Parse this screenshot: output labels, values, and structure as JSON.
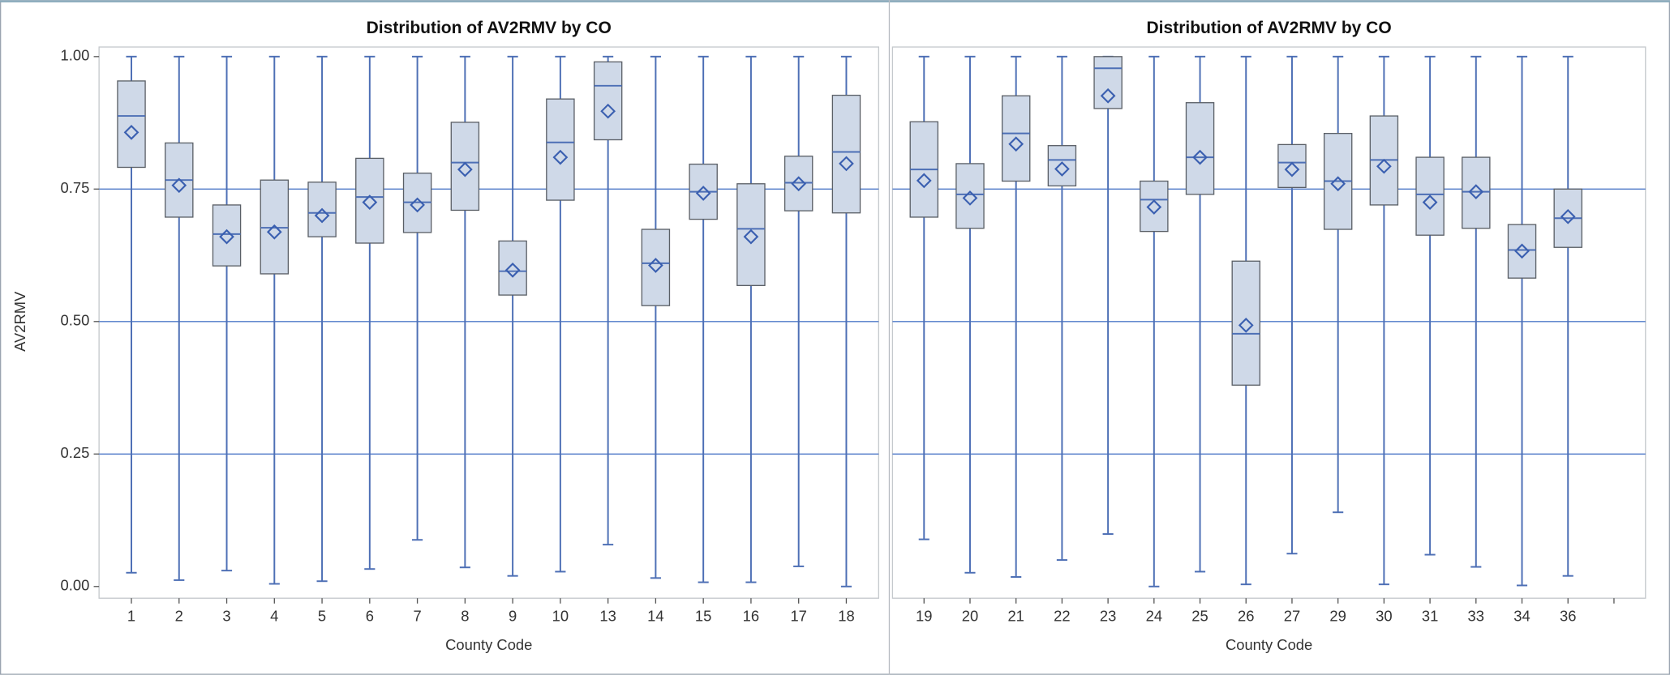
{
  "chart_data": [
    {
      "type": "box",
      "title": "Distribution of AV2RMV by CO",
      "xlabel": "County Code",
      "ylabel": "AV2RMV",
      "categories": [
        "1",
        "2",
        "3",
        "4",
        "5",
        "6",
        "7",
        "8",
        "9",
        "10",
        "13",
        "14",
        "15",
        "16",
        "17",
        "18"
      ],
      "min": [
        0.026,
        0.012,
        0.03,
        0.005,
        0.01,
        0.033,
        0.088,
        0.036,
        0.02,
        0.028,
        0.079,
        0.016,
        0.008,
        0.008,
        0.038,
        0.0
      ],
      "q1": [
        0.791,
        0.697,
        0.605,
        0.59,
        0.66,
        0.648,
        0.668,
        0.71,
        0.55,
        0.729,
        0.843,
        0.53,
        0.693,
        0.568,
        0.709,
        0.705
      ],
      "median": [
        0.888,
        0.767,
        0.665,
        0.677,
        0.705,
        0.735,
        0.725,
        0.8,
        0.595,
        0.838,
        0.945,
        0.61,
        0.745,
        0.675,
        0.762,
        0.82
      ],
      "q3": [
        0.954,
        0.837,
        0.72,
        0.767,
        0.763,
        0.808,
        0.78,
        0.876,
        0.652,
        0.92,
        0.99,
        0.674,
        0.797,
        0.76,
        0.812,
        0.927
      ],
      "max": [
        1,
        1,
        1,
        1,
        1,
        1,
        1,
        1,
        1,
        1,
        1,
        1,
        1,
        1,
        1,
        1
      ],
      "mean": [
        0.857,
        0.757,
        0.66,
        0.669,
        0.7,
        0.725,
        0.72,
        0.787,
        0.597,
        0.81,
        0.897,
        0.606,
        0.742,
        0.66,
        0.76,
        0.798
      ],
      "ylim": [
        0,
        1
      ],
      "yticks": [
        {
          "value": 0,
          "label": "0.00"
        },
        {
          "value": 0.25,
          "label": "0.25"
        },
        {
          "value": 0.5,
          "label": "0.50"
        },
        {
          "value": 0.75,
          "label": "0.75"
        },
        {
          "value": 1,
          "label": "1.00"
        }
      ],
      "reference_lines": [
        0.25,
        0.5,
        0.75
      ],
      "box_color": "#cfd9e8",
      "whisker_color": "#4d6fb5",
      "mean_color": "#3a5fb0"
    },
    {
      "type": "box",
      "title": "Distribution of AV2RMV by CO",
      "xlabel": "County Code",
      "categories": [
        "19",
        "20",
        "21",
        "22",
        "23",
        "24",
        "25",
        "26",
        "27",
        "29",
        "30",
        "31",
        "33",
        "34",
        "36",
        null
      ],
      "min": [
        0.089,
        0.026,
        0.018,
        0.05,
        0.099,
        0.0,
        0.028,
        0.004,
        0.062,
        0.14,
        0.004,
        0.06,
        0.037,
        0.002,
        0.02,
        null
      ],
      "q1": [
        0.697,
        0.676,
        0.765,
        0.756,
        0.902,
        0.67,
        0.74,
        0.38,
        0.753,
        0.674,
        0.72,
        0.663,
        0.676,
        0.582,
        0.64,
        null
      ],
      "median": [
        0.787,
        0.74,
        0.855,
        0.805,
        0.978,
        0.73,
        0.81,
        0.477,
        0.8,
        0.765,
        0.805,
        0.74,
        0.745,
        0.635,
        0.695,
        null
      ],
      "q3": [
        0.877,
        0.798,
        0.926,
        0.832,
        1.0,
        0.765,
        0.913,
        0.614,
        0.834,
        0.855,
        0.888,
        0.81,
        0.81,
        0.683,
        0.75,
        null
      ],
      "max": [
        1,
        1,
        1,
        1,
        1,
        1,
        1,
        1,
        1,
        1,
        1,
        1,
        1,
        1,
        1,
        null
      ],
      "mean": [
        0.766,
        0.733,
        0.835,
        0.788,
        0.926,
        0.716,
        0.81,
        0.493,
        0.787,
        0.76,
        0.793,
        0.725,
        0.745,
        0.633,
        0.698,
        null
      ],
      "ylim": [
        0,
        1
      ],
      "reference_lines": [
        0.25,
        0.5,
        0.75
      ],
      "box_color": "#cfd9e8",
      "whisker_color": "#4d6fb5",
      "mean_color": "#3a5fb0"
    }
  ]
}
